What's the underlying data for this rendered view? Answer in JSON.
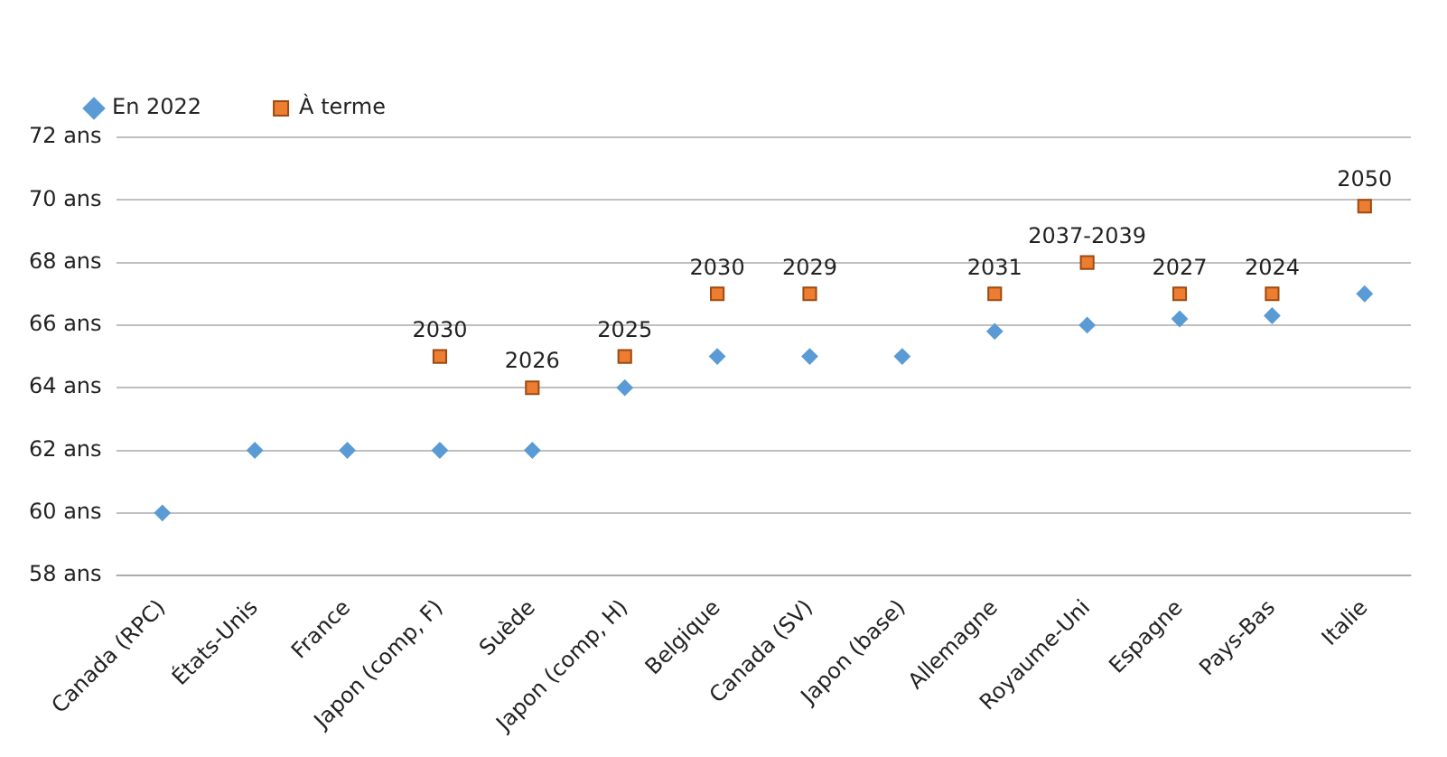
{
  "chart_data": {
    "type": "scatter",
    "categories": [
      "Canada (RPC)",
      "États-Unis",
      "France",
      "Japon (comp, F)",
      "Suède",
      "Japon (comp, H)",
      "Belgique",
      "Canada (SV)",
      "Japon (base)",
      "Allemagne",
      "Royaume-Uni",
      "Espagne",
      "Pays-Bas",
      "Italie"
    ],
    "series": [
      {
        "name": "En 2022",
        "color": "#5b9bd5",
        "marker": "diamond",
        "values": [
          60,
          62,
          62,
          62,
          62,
          64,
          65,
          65,
          65,
          65.8,
          66,
          66.2,
          66.3,
          67
        ]
      },
      {
        "name": "À terme",
        "color": "#ed7d31",
        "marker": "square",
        "values": [
          null,
          null,
          null,
          65,
          64,
          65,
          67,
          67,
          null,
          67,
          68,
          67,
          67,
          69.8
        ]
      }
    ],
    "annotations": [
      {
        "text": "2030",
        "x": "Japon (comp, F)",
        "y": 65
      },
      {
        "text": "2026",
        "x": "Suède",
        "y": 64
      },
      {
        "text": "2025",
        "x": "Japon (comp, H)",
        "y": 65
      },
      {
        "text": "2030",
        "x": "Belgique",
        "y": 67
      },
      {
        "text": "2029",
        "x": "Canada (SV)",
        "y": 67
      },
      {
        "text": "2031",
        "x": "Allemagne",
        "y": 67
      },
      {
        "text": "2037-2039",
        "x": "Royaume-Uni",
        "y": 68
      },
      {
        "text": "2027",
        "x": "Espagne",
        "y": 67
      },
      {
        "text": "2024",
        "x": "Pays-Bas",
        "y": 67
      },
      {
        "text": "2050",
        "x": "Italie",
        "y": 69.8
      }
    ],
    "ylim": [
      58,
      72
    ],
    "yticks": [
      {
        "value": 58,
        "label": "58 ans"
      },
      {
        "value": 60,
        "label": "60 ans"
      },
      {
        "value": 62,
        "label": "62 ans"
      },
      {
        "value": 64,
        "label": "64 ans"
      },
      {
        "value": 66,
        "label": "66 ans"
      },
      {
        "value": 68,
        "label": "68 ans"
      },
      {
        "value": 70,
        "label": "70 ans"
      },
      {
        "value": 72,
        "label": "72 ans"
      }
    ],
    "grid": "y",
    "legend": "top left"
  }
}
